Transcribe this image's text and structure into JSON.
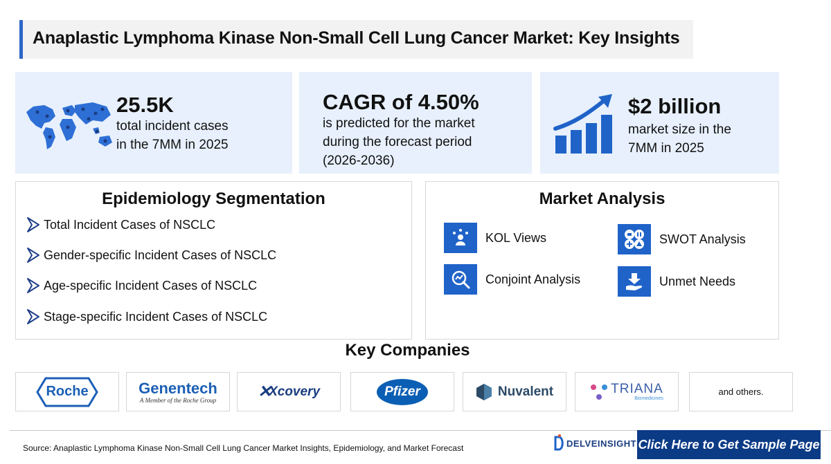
{
  "title": "Anaplastic Lymphoma Kinase Non-Small Cell Lung Cancer Market: Key Insights",
  "stats": [
    {
      "value": "25.5K",
      "line1": "total incident cases",
      "line2": "in the 7MM in 2025",
      "icon": "world-map-icon"
    },
    {
      "value": "CAGR of 4.50%",
      "line1": "is predicted for the market",
      "line2": "during the forecast period",
      "line3": "(2026-2036)"
    },
    {
      "value": "$2 billion",
      "line1": "market size in the",
      "line2": "7MM in 2025",
      "icon": "growth-chart-icon"
    }
  ],
  "epidemiology": {
    "heading": "Epidemiology Segmentation",
    "items": [
      "Total Incident Cases of NSCLC",
      "Gender-specific Incident Cases of NSCLC",
      "Age-specific Incident Cases of NSCLC",
      "Stage-specific Incident Cases of NSCLC"
    ]
  },
  "market_analysis": {
    "heading": "Market Analysis",
    "items": [
      {
        "label": "KOL Views",
        "icon": "kol-icon"
      },
      {
        "label": "SWOT Analysis",
        "icon": "swot-icon"
      },
      {
        "label": "Conjoint Analysis",
        "icon": "conjoint-icon"
      },
      {
        "label": "Unmet Needs",
        "icon": "unmet-needs-icon"
      }
    ]
  },
  "key_companies": {
    "heading": "Key Companies",
    "logos": {
      "roche": "Roche",
      "genentech": "Genentech",
      "genentech_sub": "A Member of the Roche Group",
      "xcovery": "Xcovery",
      "pfizer": "Pfizer",
      "nuvalent": "Nuvalent",
      "triana": "TRIANA",
      "triana_sub": "Biomedicines"
    },
    "others": "and others."
  },
  "footer": {
    "source": "Source: Anaplastic Lymphoma Kinase Non-Small Cell Lung Cancer Market Insights, Epidemiology, and Market Forecast",
    "brand": "DELVEINSIGHT",
    "cta": "Click Here to Get Sample Page"
  },
  "colors": {
    "accent": "#2e66c9",
    "stat_bg": "#e7f0fc",
    "cta_bg": "#0c3b86",
    "icon_blue": "#1f63c8"
  }
}
